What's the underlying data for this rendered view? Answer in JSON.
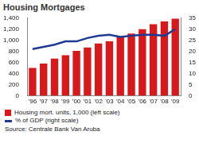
{
  "chart_data": {
    "type": "bar",
    "title": "Housing Mortgages",
    "categories": [
      "'96",
      "'97",
      "'98",
      "'99",
      "'00",
      "'01",
      "'02",
      "'03",
      "'04",
      "'05",
      "'06",
      "'07",
      "'08",
      "'09"
    ],
    "series": [
      {
        "name": "Housing mort. units, 1,000 (left scale)",
        "type": "bar",
        "color": "#d7191c",
        "values": [
          500,
          580,
          670,
          730,
          810,
          870,
          940,
          980,
          1060,
          1120,
          1200,
          1290,
          1340,
          1390
        ]
      },
      {
        "name": "% of GDP (right scale)",
        "type": "line",
        "color": "#1f3a93",
        "axis": "y2",
        "marker": "none",
        "values": [
          21,
          22,
          23,
          24.5,
          24.5,
          26,
          27,
          27.5,
          26.5,
          27,
          27.5,
          27.5,
          27,
          30
        ]
      }
    ],
    "ylim": [
      0,
      1400
    ],
    "yticks": [
      0,
      200,
      400,
      600,
      800,
      {
        "value": 1000,
        "label": "1,000"
      },
      {
        "value": 1200,
        "label": "1,200"
      },
      {
        "value": 1400,
        "label": "1,400"
      }
    ],
    "y2lim": [
      0,
      35
    ],
    "y2ticks": [
      0,
      5,
      10,
      15,
      20,
      25,
      30,
      35
    ],
    "grid": false,
    "legend": "bottom",
    "source": "Source: Centrale Bank Van Aruba"
  }
}
